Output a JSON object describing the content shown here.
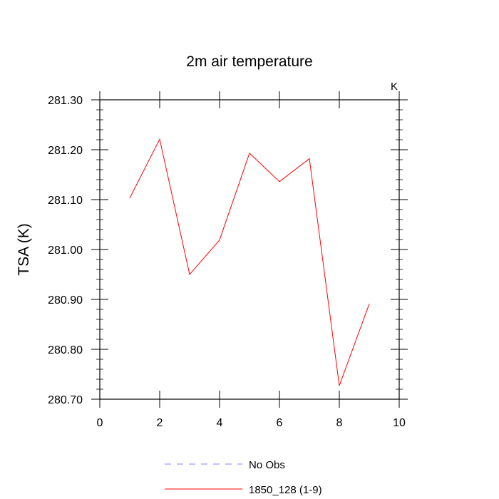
{
  "chart_data": {
    "type": "line",
    "title": "2m air temperature",
    "units_label": "K",
    "ylabel": "TSA  (K)",
    "xlabel": "",
    "xlim": [
      0,
      10
    ],
    "ylim": [
      280.7,
      281.3
    ],
    "x_ticks": [
      0,
      2,
      4,
      6,
      8,
      10
    ],
    "y_ticks": [
      280.7,
      280.8,
      280.9,
      281.0,
      281.1,
      281.2,
      281.3
    ],
    "y_tick_labels": [
      "280.70",
      "280.80",
      "280.90",
      "281.00",
      "281.10",
      "281.20",
      "281.30"
    ],
    "x_tick_labels": [
      "0",
      "2",
      "4",
      "6",
      "8",
      "10"
    ],
    "grid": false,
    "legend_position": "bottom",
    "series": [
      {
        "name": "1850_128 (1-9)",
        "color": "#ff0000",
        "style": "solid",
        "x": [
          1,
          2,
          3,
          4,
          5,
          6,
          7,
          8,
          9
        ],
        "y": [
          281.103,
          281.221,
          280.95,
          281.019,
          281.193,
          281.136,
          281.182,
          280.727,
          280.891
        ]
      }
    ],
    "legend": [
      {
        "label": "No Obs",
        "color": "#8080ff",
        "style": "dashed"
      },
      {
        "label": "1850_128 (1-9)",
        "color": "#ff0000",
        "style": "solid"
      }
    ]
  }
}
